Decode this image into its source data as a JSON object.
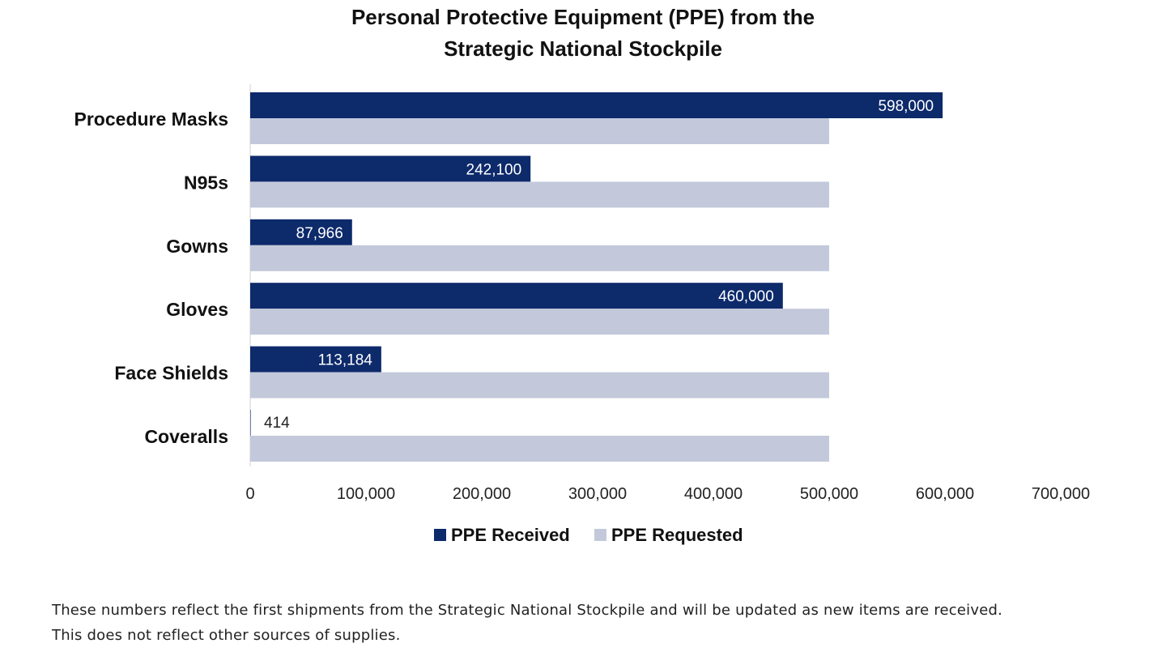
{
  "chart_data": {
    "type": "bar",
    "orientation": "horizontal",
    "title": "Personal Protective Equipment (PPE) from the Strategic National Stockpile",
    "title_lines": [
      "Personal Protective Equipment (PPE) from the",
      "Strategic National Stockpile"
    ],
    "categories": [
      "Procedure Masks",
      "N95s",
      "Gowns",
      "Gloves",
      "Face Shields",
      "Coveralls"
    ],
    "series": [
      {
        "name": "PPE Received",
        "color": "#0d2a6b",
        "values": [
          598000,
          242100,
          87966,
          460000,
          113184,
          414
        ],
        "labels": [
          "598,000",
          "242,100",
          "87,966",
          "460,000",
          "113,184",
          "414"
        ]
      },
      {
        "name": "PPE Requested",
        "color": "#c3c9db",
        "values": [
          500000,
          500000,
          500000,
          500000,
          500000,
          500000
        ]
      }
    ],
    "xlim": [
      0,
      700000
    ],
    "x_ticks": [
      0,
      100000,
      200000,
      300000,
      400000,
      500000,
      600000,
      700000
    ],
    "x_tick_labels": [
      "0",
      "100,000",
      "200,000",
      "300,000",
      "400,000",
      "500,000",
      "600,000",
      "700,000"
    ],
    "xlabel": "",
    "ylabel": "",
    "grid": false,
    "legend_position": "bottom-center"
  },
  "footnote": {
    "line1": "These numbers reflect the first shipments from the Strategic National Stockpile and will be updated as new items are received.",
    "line2": "This does not reflect other sources of supplies."
  }
}
